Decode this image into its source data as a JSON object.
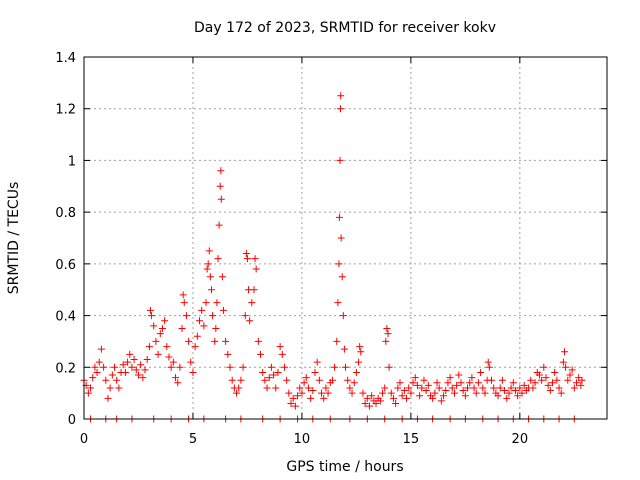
{
  "chart_data": {
    "type": "scatter",
    "title": "Day 172 of 2023, SRMTID for receiver kokv",
    "xlabel": "GPS time / hours",
    "ylabel": "SRMTID / TECUs",
    "xlim": [
      0,
      24
    ],
    "ylim": [
      0,
      1.4
    ],
    "xticks": [
      0,
      5,
      10,
      15,
      20
    ],
    "yticks": [
      0,
      0.2,
      0.4,
      0.6,
      0.8,
      1.0,
      1.2,
      1.4
    ],
    "xtick_labels": [
      "0",
      "5",
      "10",
      "15",
      "20"
    ],
    "ytick_labels": [
      "0",
      "0.2",
      "0.4",
      "0.6",
      "0.8",
      "1",
      "1.2",
      "1.4"
    ],
    "grid": true,
    "marker": "+",
    "marker_color": "#ff0000",
    "series": [
      {
        "name": "SRMTID",
        "points": [
          [
            0.0,
            0.15
          ],
          [
            0.1,
            0.13
          ],
          [
            0.2,
            0.1
          ],
          [
            0.3,
            0.12
          ],
          [
            0.4,
            0.16
          ],
          [
            0.5,
            0.2
          ],
          [
            0.6,
            0.18
          ],
          [
            0.7,
            0.22
          ],
          [
            0.8,
            0.27
          ],
          [
            0.9,
            0.2
          ],
          [
            1.0,
            0.15
          ],
          [
            1.1,
            0.08
          ],
          [
            1.2,
            0.12
          ],
          [
            1.3,
            0.17
          ],
          [
            1.4,
            0.2
          ],
          [
            1.5,
            0.15
          ],
          [
            1.6,
            0.12
          ],
          [
            1.7,
            0.18
          ],
          [
            1.8,
            0.21
          ],
          [
            1.9,
            0.18
          ],
          [
            2.0,
            0.22
          ],
          [
            2.1,
            0.25
          ],
          [
            2.2,
            0.2
          ],
          [
            2.3,
            0.23
          ],
          [
            2.4,
            0.19
          ],
          [
            2.5,
            0.17
          ],
          [
            2.6,
            0.21
          ],
          [
            2.7,
            0.16
          ],
          [
            2.8,
            0.19
          ],
          [
            2.9,
            0.23
          ],
          [
            3.0,
            0.28
          ],
          [
            3.05,
            0.42
          ],
          [
            3.1,
            0.4
          ],
          [
            3.2,
            0.36
          ],
          [
            3.3,
            0.3
          ],
          [
            3.4,
            0.25
          ],
          [
            3.5,
            0.33
          ],
          [
            3.6,
            0.35
          ],
          [
            3.7,
            0.38
          ],
          [
            3.8,
            0.28
          ],
          [
            3.9,
            0.24
          ],
          [
            4.0,
            0.2
          ],
          [
            4.1,
            0.22
          ],
          [
            4.2,
            0.16
          ],
          [
            4.3,
            0.14
          ],
          [
            4.4,
            0.2
          ],
          [
            4.5,
            0.35
          ],
          [
            4.55,
            0.48
          ],
          [
            4.6,
            0.45
          ],
          [
            4.7,
            0.4
          ],
          [
            4.8,
            0.3
          ],
          [
            4.9,
            0.22
          ],
          [
            5.0,
            0.18
          ],
          [
            5.1,
            0.28
          ],
          [
            5.2,
            0.32
          ],
          [
            5.3,
            0.38
          ],
          [
            5.4,
            0.42
          ],
          [
            5.5,
            0.36
          ],
          [
            5.6,
            0.45
          ],
          [
            5.65,
            0.58
          ],
          [
            5.7,
            0.6
          ],
          [
            5.75,
            0.65
          ],
          [
            5.8,
            0.55
          ],
          [
            5.85,
            0.5
          ],
          [
            5.9,
            0.4
          ],
          [
            6.0,
            0.3
          ],
          [
            6.05,
            0.35
          ],
          [
            6.1,
            0.45
          ],
          [
            6.15,
            0.62
          ],
          [
            6.2,
            0.75
          ],
          [
            6.25,
            0.9
          ],
          [
            6.28,
            0.96
          ],
          [
            6.3,
            0.85
          ],
          [
            6.35,
            0.55
          ],
          [
            6.4,
            0.42
          ],
          [
            6.5,
            0.3
          ],
          [
            6.6,
            0.25
          ],
          [
            6.7,
            0.2
          ],
          [
            6.8,
            0.15
          ],
          [
            6.9,
            0.12
          ],
          [
            7.0,
            0.1
          ],
          [
            7.1,
            0.12
          ],
          [
            7.2,
            0.15
          ],
          [
            7.3,
            0.2
          ],
          [
            7.4,
            0.4
          ],
          [
            7.45,
            0.64
          ],
          [
            7.5,
            0.62
          ],
          [
            7.55,
            0.5
          ],
          [
            7.6,
            0.38
          ],
          [
            7.7,
            0.45
          ],
          [
            7.8,
            0.5
          ],
          [
            7.85,
            0.62
          ],
          [
            7.9,
            0.58
          ],
          [
            8.0,
            0.3
          ],
          [
            8.1,
            0.25
          ],
          [
            8.2,
            0.18
          ],
          [
            8.3,
            0.15
          ],
          [
            8.4,
            0.12
          ],
          [
            8.5,
            0.16
          ],
          [
            8.6,
            0.2
          ],
          [
            8.7,
            0.17
          ],
          [
            8.8,
            0.12
          ],
          [
            8.9,
            0.18
          ],
          [
            9.0,
            0.28
          ],
          [
            9.1,
            0.25
          ],
          [
            9.2,
            0.2
          ],
          [
            9.3,
            0.15
          ],
          [
            9.4,
            0.1
          ],
          [
            9.5,
            0.06
          ],
          [
            9.6,
            0.08
          ],
          [
            9.7,
            0.05
          ],
          [
            9.8,
            0.09
          ],
          [
            9.9,
            0.12
          ],
          [
            10.0,
            0.1
          ],
          [
            10.1,
            0.14
          ],
          [
            10.2,
            0.16
          ],
          [
            10.3,
            0.12
          ],
          [
            10.4,
            0.08
          ],
          [
            10.5,
            0.11
          ],
          [
            10.6,
            0.18
          ],
          [
            10.7,
            0.22
          ],
          [
            10.8,
            0.15
          ],
          [
            10.9,
            0.1
          ],
          [
            11.0,
            0.08
          ],
          [
            11.1,
            0.12
          ],
          [
            11.2,
            0.1
          ],
          [
            11.3,
            0.14
          ],
          [
            11.4,
            0.15
          ],
          [
            11.5,
            0.2
          ],
          [
            11.6,
            0.3
          ],
          [
            11.65,
            0.45
          ],
          [
            11.7,
            0.6
          ],
          [
            11.72,
            0.78
          ],
          [
            11.75,
            1.0
          ],
          [
            11.77,
            1.2
          ],
          [
            11.78,
            1.25
          ],
          [
            11.8,
            0.7
          ],
          [
            11.85,
            0.55
          ],
          [
            11.9,
            0.4
          ],
          [
            11.95,
            0.27
          ],
          [
            12.0,
            0.2
          ],
          [
            12.1,
            0.15
          ],
          [
            12.2,
            0.12
          ],
          [
            12.3,
            0.1
          ],
          [
            12.4,
            0.14
          ],
          [
            12.5,
            0.18
          ],
          [
            12.6,
            0.22
          ],
          [
            12.65,
            0.28
          ],
          [
            12.7,
            0.26
          ],
          [
            12.8,
            0.1
          ],
          [
            12.9,
            0.06
          ],
          [
            13.0,
            0.08
          ],
          [
            13.1,
            0.05
          ],
          [
            13.2,
            0.09
          ],
          [
            13.3,
            0.07
          ],
          [
            13.4,
            0.06
          ],
          [
            13.5,
            0.08
          ],
          [
            13.6,
            0.07
          ],
          [
            13.7,
            0.1
          ],
          [
            13.8,
            0.12
          ],
          [
            13.85,
            0.3
          ],
          [
            13.9,
            0.35
          ],
          [
            13.95,
            0.33
          ],
          [
            14.0,
            0.2
          ],
          [
            14.1,
            0.1
          ],
          [
            14.2,
            0.08
          ],
          [
            14.3,
            0.06
          ],
          [
            14.4,
            0.12
          ],
          [
            14.5,
            0.14
          ],
          [
            14.6,
            0.09
          ],
          [
            14.7,
            0.11
          ],
          [
            14.8,
            0.08
          ],
          [
            14.9,
            0.12
          ],
          [
            15.0,
            0.1
          ],
          [
            15.1,
            0.14
          ],
          [
            15.2,
            0.16
          ],
          [
            15.3,
            0.13
          ],
          [
            15.4,
            0.09
          ],
          [
            15.5,
            0.12
          ],
          [
            15.6,
            0.15
          ],
          [
            15.7,
            0.11
          ],
          [
            15.8,
            0.13
          ],
          [
            15.9,
            0.09
          ],
          [
            16.0,
            0.08
          ],
          [
            16.1,
            0.1
          ],
          [
            16.2,
            0.14
          ],
          [
            16.3,
            0.12
          ],
          [
            16.4,
            0.07
          ],
          [
            16.5,
            0.09
          ],
          [
            16.6,
            0.11
          ],
          [
            16.7,
            0.14
          ],
          [
            16.8,
            0.16
          ],
          [
            16.9,
            0.12
          ],
          [
            17.0,
            0.1
          ],
          [
            17.1,
            0.13
          ],
          [
            17.2,
            0.17
          ],
          [
            17.3,
            0.14
          ],
          [
            17.4,
            0.11
          ],
          [
            17.5,
            0.09
          ],
          [
            17.6,
            0.12
          ],
          [
            17.7,
            0.14
          ],
          [
            17.8,
            0.16
          ],
          [
            17.9,
            0.12
          ],
          [
            18.0,
            0.1
          ],
          [
            18.1,
            0.14
          ],
          [
            18.2,
            0.18
          ],
          [
            18.3,
            0.12
          ],
          [
            18.4,
            0.1
          ],
          [
            18.5,
            0.15
          ],
          [
            18.55,
            0.22
          ],
          [
            18.6,
            0.2
          ],
          [
            18.7,
            0.15
          ],
          [
            18.8,
            0.12
          ],
          [
            18.9,
            0.1
          ],
          [
            19.0,
            0.09
          ],
          [
            19.1,
            0.12
          ],
          [
            19.2,
            0.15
          ],
          [
            19.3,
            0.11
          ],
          [
            19.4,
            0.08
          ],
          [
            19.5,
            0.1
          ],
          [
            19.6,
            0.12
          ],
          [
            19.7,
            0.14
          ],
          [
            19.8,
            0.11
          ],
          [
            19.9,
            0.09
          ],
          [
            20.0,
            0.12
          ],
          [
            20.1,
            0.1
          ],
          [
            20.2,
            0.13
          ],
          [
            20.3,
            0.11
          ],
          [
            20.4,
            0.12
          ],
          [
            20.5,
            0.15
          ],
          [
            20.6,
            0.12
          ],
          [
            20.7,
            0.14
          ],
          [
            20.8,
            0.18
          ],
          [
            20.9,
            0.17
          ],
          [
            21.0,
            0.15
          ],
          [
            21.1,
            0.2
          ],
          [
            21.2,
            0.16
          ],
          [
            21.3,
            0.13
          ],
          [
            21.4,
            0.11
          ],
          [
            21.5,
            0.14
          ],
          [
            21.6,
            0.18
          ],
          [
            21.7,
            0.15
          ],
          [
            21.8,
            0.12
          ],
          [
            21.9,
            0.1
          ],
          [
            22.0,
            0.22
          ],
          [
            22.05,
            0.26
          ],
          [
            22.1,
            0.2
          ],
          [
            22.2,
            0.15
          ],
          [
            22.3,
            0.17
          ],
          [
            22.4,
            0.19
          ],
          [
            22.5,
            0.12
          ],
          [
            22.6,
            0.14
          ],
          [
            22.7,
            0.16
          ],
          [
            22.8,
            0.13
          ],
          [
            22.85,
            0.15
          ],
          [
            0.3,
            0.0
          ],
          [
            1.0,
            0.0
          ],
          [
            1.5,
            0.0
          ],
          [
            2.2,
            0.0
          ],
          [
            3.2,
            0.0
          ],
          [
            4.0,
            0.0
          ],
          [
            4.8,
            0.0
          ],
          [
            5.5,
            0.0
          ],
          [
            6.5,
            0.0
          ],
          [
            7.2,
            0.0
          ],
          [
            8.2,
            0.0
          ],
          [
            9.0,
            0.0
          ],
          [
            9.8,
            0.0
          ],
          [
            10.5,
            0.0
          ],
          [
            11.3,
            0.0
          ],
          [
            12.2,
            0.0
          ],
          [
            13.0,
            0.0
          ],
          [
            13.8,
            0.0
          ],
          [
            14.6,
            0.0
          ],
          [
            15.3,
            0.0
          ],
          [
            16.0,
            0.0
          ],
          [
            16.8,
            0.0
          ],
          [
            17.5,
            0.0
          ],
          [
            18.3,
            0.0
          ],
          [
            19.0,
            0.0
          ],
          [
            19.7,
            0.0
          ],
          [
            20.4,
            0.0
          ],
          [
            21.1,
            0.0
          ],
          [
            21.8,
            0.0
          ],
          [
            22.5,
            0.0
          ]
        ]
      }
    ]
  }
}
